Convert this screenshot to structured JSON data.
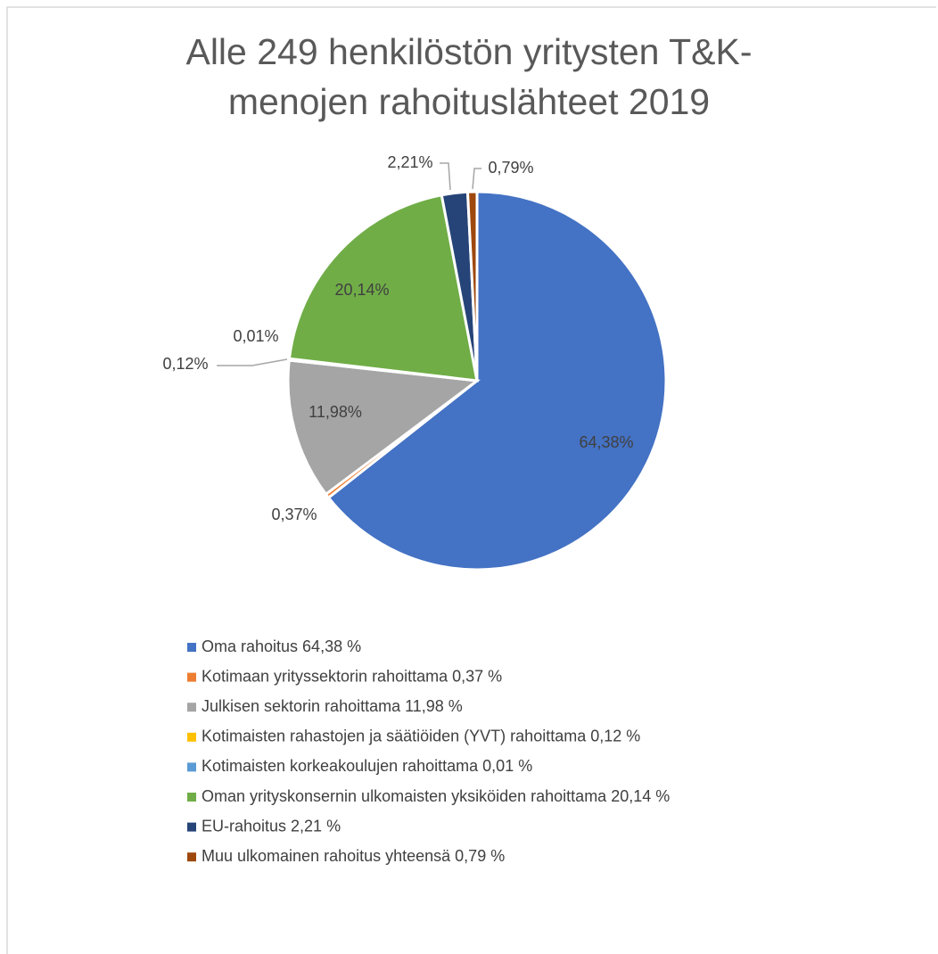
{
  "chart_data": {
    "type": "pie",
    "title": "Alle 249 henkilöstön yritysten T&K-menojen rahoituslähteet 2019",
    "categories": [
      "Oma rahoitus 64,38 %",
      "Kotimaan yrityssektorin rahoittama 0,37 %",
      "Julkisen sektorin rahoittama 11,98 %",
      "Kotimaisten rahastojen ja säätiöiden (YVT) rahoittama 0,12 %",
      "Kotimaisten korkeakoulujen rahoittama 0,01 %",
      "Oman yrityskonsernin ulkomaisten yksiköiden rahoittama 20,14 %",
      "EU-rahoitus 2,21 %",
      "Muu ulkomainen rahoitus yhteensä 0,79 %"
    ],
    "values": [
      64.38,
      0.37,
      11.98,
      0.12,
      0.01,
      20.14,
      2.21,
      0.79
    ],
    "value_labels": [
      "64,38%",
      "0,37%",
      "11,98%",
      "0,12%",
      "0,01%",
      "20,14%",
      "2,21%",
      "0,79%"
    ],
    "colors": [
      "#4472c4",
      "#ed7d31",
      "#a5a5a5",
      "#ffc000",
      "#5b9bd5",
      "#70ad47",
      "#264478",
      "#9e480e"
    ],
    "legend": "bottom"
  }
}
